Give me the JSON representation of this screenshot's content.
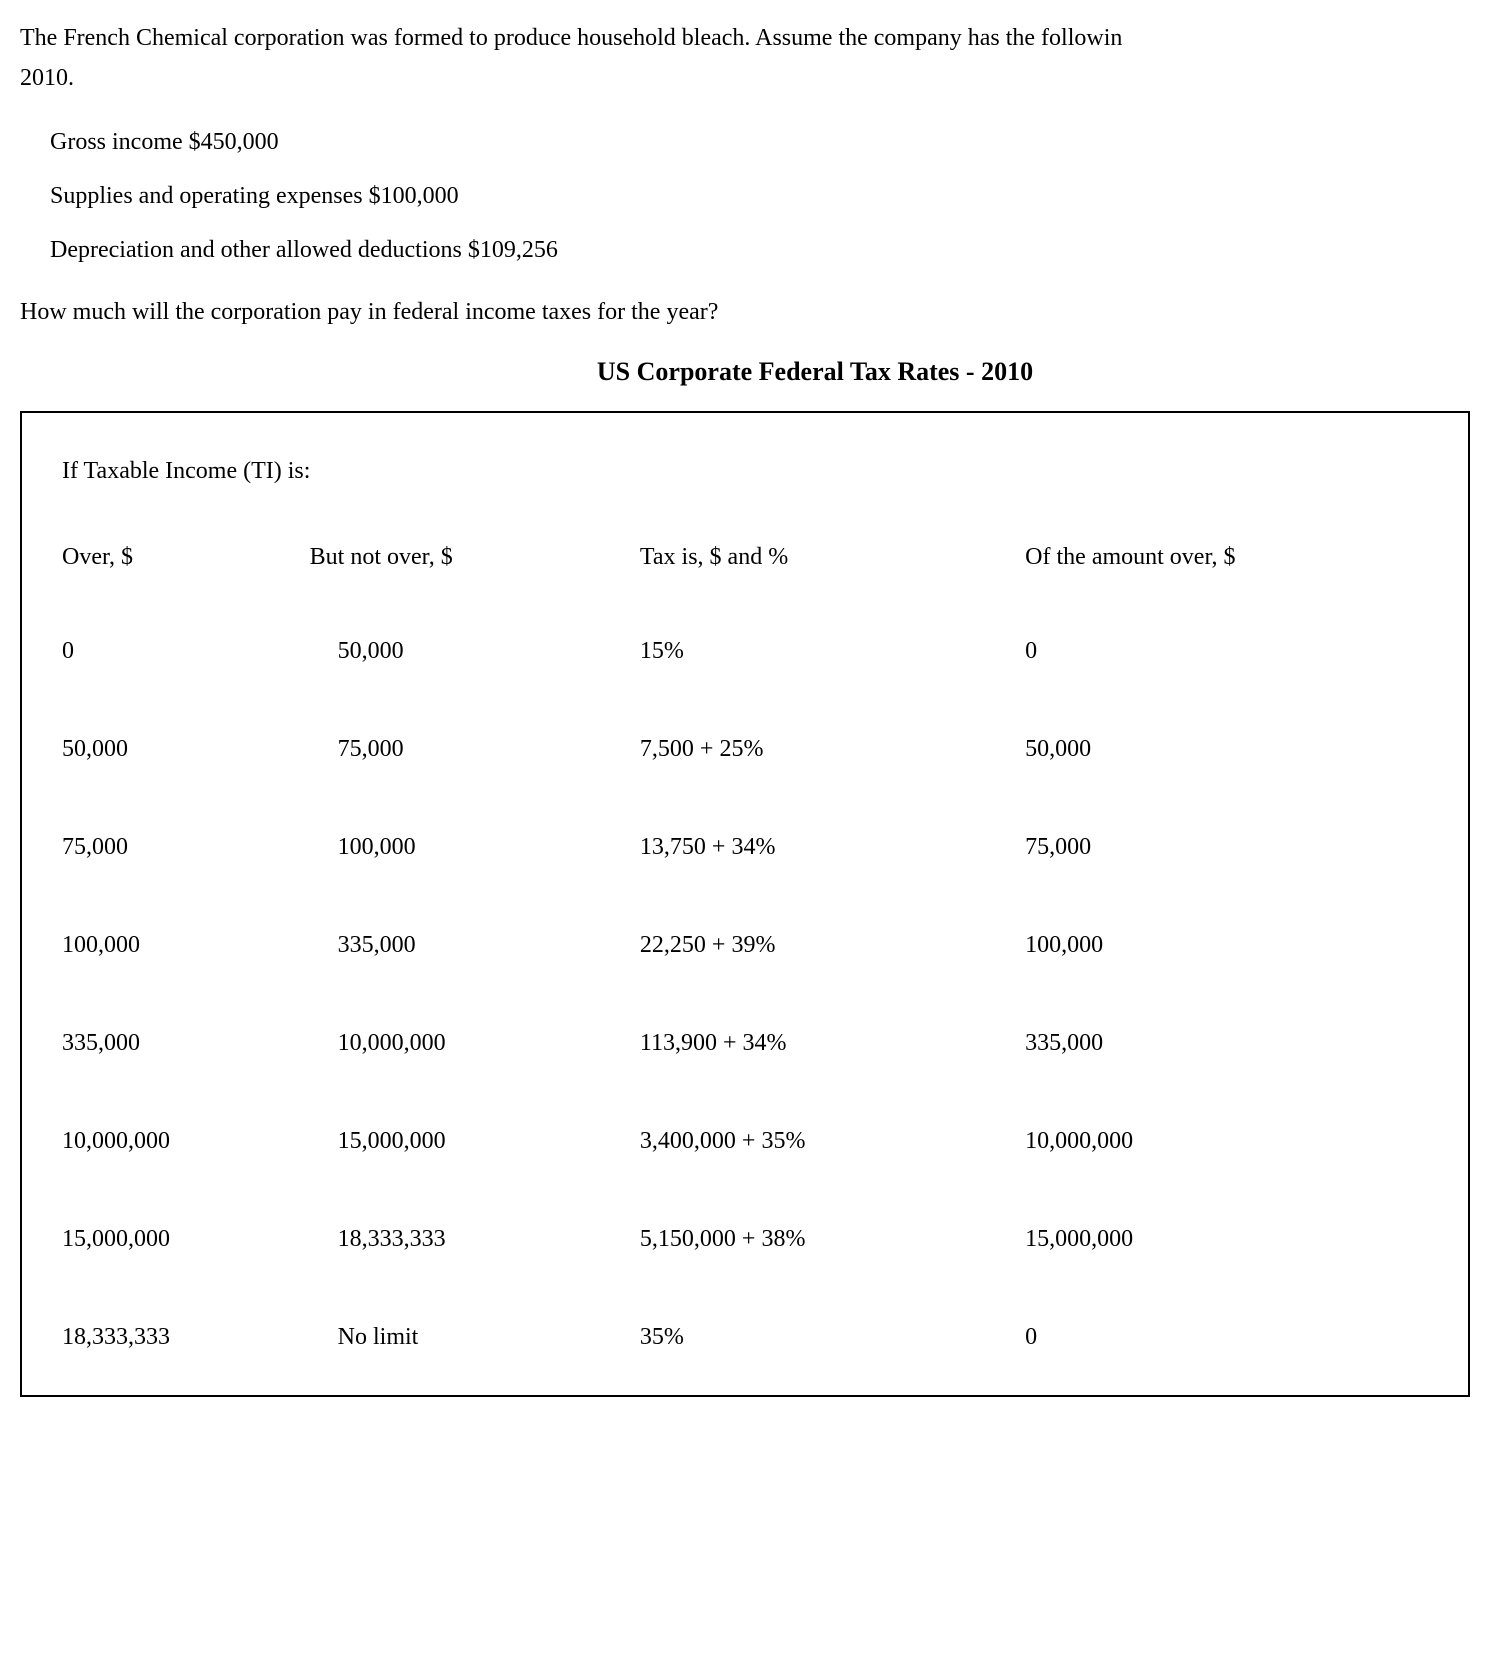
{
  "problem": {
    "intro_line1": "The French Chemical corporation was formed to produce household bleach. Assume the company has the followin",
    "intro_line2": "2010.",
    "items": [
      "Gross income $450,000",
      "Supplies and operating expenses $100,000",
      "Depreciation and other allowed deductions $109,256"
    ],
    "question": "How much will the corporation pay in federal income taxes for the year?"
  },
  "tax_table": {
    "title": "US Corporate Federal Tax Rates - 2010",
    "header_label": "If Taxable Income (TI) is:",
    "columns": [
      "Over, $",
      "But not  over, $",
      "Tax is, $ and %",
      "Of the amount over, $"
    ],
    "rows": [
      [
        "0",
        "50,000",
        "15%",
        "0"
      ],
      [
        "50,000",
        "75,000",
        "7,500 + 25%",
        "50,000"
      ],
      [
        "75,000",
        "100,000",
        "13,750 + 34%",
        "75,000"
      ],
      [
        "100,000",
        "335,000",
        "22,250 + 39%",
        "100,000"
      ],
      [
        "335,000",
        "10,000,000",
        "113,900 + 34%",
        "335,000"
      ],
      [
        "10,000,000",
        "15,000,000",
        "3,400,000 + 35%",
        "10,000,000"
      ],
      [
        "15,000,000",
        "18,333,333",
        "5,150,000 + 38%",
        "15,000,000"
      ],
      [
        "18,333,333",
        "No limit",
        "35%",
        "0"
      ]
    ]
  },
  "style": {
    "font_family": "Times New Roman",
    "body_fontsize": 24,
    "title_fontsize": 26,
    "text_color": "#000000",
    "background_color": "#ffffff",
    "border_color": "#000000",
    "border_width": 2
  }
}
